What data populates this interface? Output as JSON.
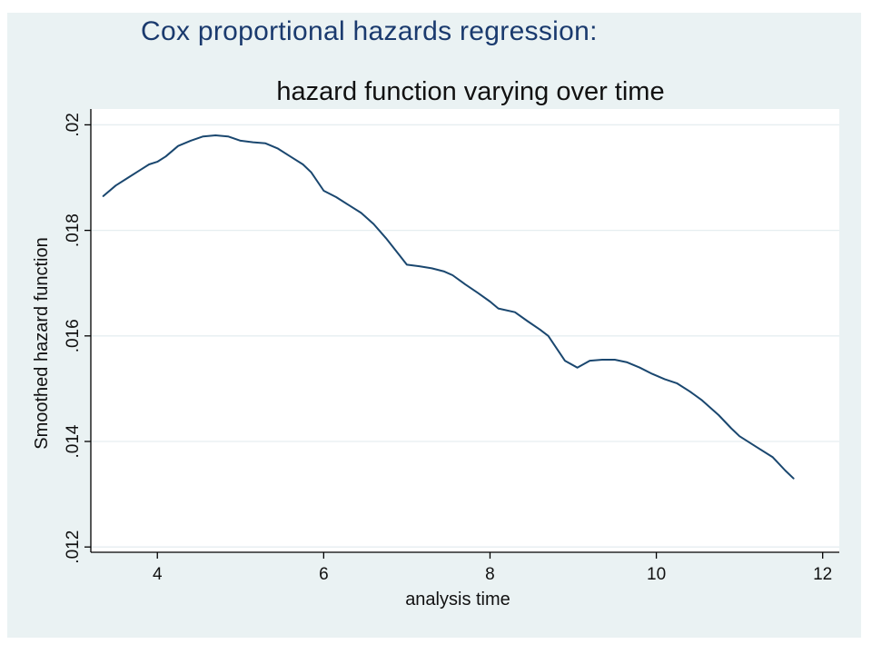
{
  "slide": {
    "title": "Cox proportional hazards regression:"
  },
  "colors": {
    "outer_background": "#eaf2f3",
    "plot_background": "#ffffff",
    "gridline": "#e6eef0",
    "line": "#1a476f",
    "title": "#1a3a6e"
  },
  "chart_data": {
    "type": "line",
    "title": "hazard function varying over time",
    "xlabel": "analysis time",
    "ylabel": "Smoothed hazard function",
    "xlim": [
      3.2,
      12.2
    ],
    "ylim": [
      0.0119,
      0.0203
    ],
    "xticks": [
      4,
      6,
      8,
      10,
      12
    ],
    "xtick_labels": [
      "4",
      "6",
      "8",
      "10",
      "12"
    ],
    "yticks": [
      0.012,
      0.014,
      0.016,
      0.018,
      0.02
    ],
    "ytick_labels": [
      ".012",
      ".014",
      ".016",
      ".018",
      ".02"
    ],
    "grid": true,
    "legend": "none",
    "series": [
      {
        "x": [
          3.35,
          3.5,
          3.65,
          3.8,
          3.9,
          4.0,
          4.1,
          4.25,
          4.4,
          4.55,
          4.7,
          4.85,
          5.0,
          5.15,
          5.3,
          5.45,
          5.6,
          5.75,
          5.85,
          6.0,
          6.15,
          6.3,
          6.45,
          6.6,
          6.75,
          6.9,
          7.0,
          7.15,
          7.3,
          7.45,
          7.55,
          7.7,
          7.85,
          8.0,
          8.1,
          8.3,
          8.45,
          8.6,
          8.7,
          8.9,
          9.05,
          9.2,
          9.35,
          9.5,
          9.65,
          9.8,
          9.95,
          10.1,
          10.25,
          10.4,
          10.55,
          10.75,
          10.9,
          11.0,
          11.2,
          11.4,
          11.55,
          11.65
        ],
        "y": [
          0.01865,
          0.01885,
          0.019,
          0.01915,
          0.01925,
          0.0193,
          0.0194,
          0.0196,
          0.0197,
          0.01978,
          0.0198,
          0.01978,
          0.0197,
          0.01967,
          0.01965,
          0.01955,
          0.0194,
          0.01925,
          0.0191,
          0.01875,
          0.01863,
          0.01848,
          0.01833,
          0.01812,
          0.01785,
          0.01755,
          0.01735,
          0.01732,
          0.01728,
          0.01722,
          0.01715,
          0.01698,
          0.01682,
          0.01665,
          0.01652,
          0.01645,
          0.01628,
          0.01612,
          0.016,
          0.01553,
          0.0154,
          0.01553,
          0.01555,
          0.01555,
          0.0155,
          0.0154,
          0.01528,
          0.01518,
          0.0151,
          0.01495,
          0.01478,
          0.0145,
          0.01425,
          0.0141,
          0.0139,
          0.0137,
          0.01345,
          0.0133
        ]
      }
    ]
  }
}
